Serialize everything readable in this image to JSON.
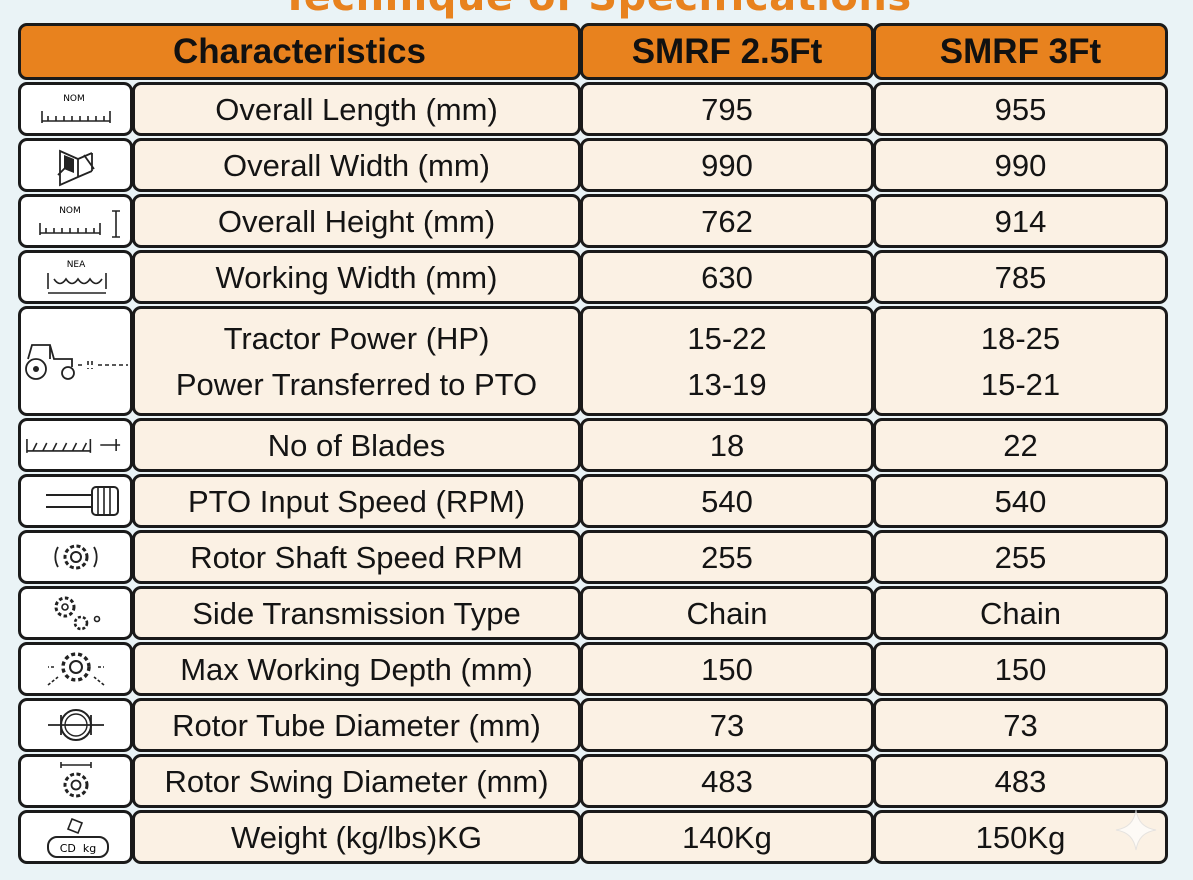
{
  "title": "Technique of Specifications",
  "header": {
    "characteristics": "Characteristics",
    "model_a": "SMRF 2.5Ft",
    "model_b": "SMRF 3Ft"
  },
  "rows": [
    {
      "icon": "length-ruler-icon",
      "icon_text": "NOM",
      "label": "Overall Length (mm)",
      "a": "795",
      "b": "955"
    },
    {
      "icon": "width-machine-icon",
      "label": "Overall Width (mm)",
      "a": "990",
      "b": "990"
    },
    {
      "icon": "height-ruler-icon",
      "icon_text": "NOM",
      "label": "Overall Height (mm)",
      "a": "762",
      "b": "914"
    },
    {
      "icon": "working-width-icon",
      "icon_text": "NEA",
      "label": "Working Width (mm)",
      "a": "630",
      "b": "785"
    },
    {
      "icon": "tractor-icon",
      "label": "Tractor Power (HP)",
      "a": "15-22",
      "b": "18-25",
      "label2": "Power Transferred to PTO",
      "a2": "13-19",
      "b2": "15-21"
    },
    {
      "icon": "blades-icon",
      "label": "No of Blades",
      "a": "18",
      "b": "22"
    },
    {
      "icon": "pto-shaft-icon",
      "label": "PTO Input Speed (RPM)",
      "a": "540",
      "b": "540"
    },
    {
      "icon": "rotor-gear-icon",
      "label": "Rotor Shaft Speed RPM",
      "a": "255",
      "b": "255"
    },
    {
      "icon": "gears-icon",
      "label": "Side Transmission Type",
      "a": "Chain",
      "b": "Chain"
    },
    {
      "icon": "depth-gear-icon",
      "label": "Max Working Depth (mm)",
      "a": "150",
      "b": "150"
    },
    {
      "icon": "tube-diameter-icon",
      "label": "Rotor Tube Diameter (mm)",
      "a": "73",
      "b": "73"
    },
    {
      "icon": "swing-gear-icon",
      "label": "Rotor Swing Diameter (mm)",
      "a": "483",
      "b": "483"
    },
    {
      "icon": "weight-icon",
      "icon_text": "CD  kg",
      "label": "Weight (kg/lbs)KG",
      "a": "140Kg",
      "b": "150Kg"
    }
  ],
  "colors": {
    "accent": "#e8821e",
    "cell_bg": "#fbf1e4",
    "border": "#1a1a1a",
    "page_bg": "#eaf3f6"
  }
}
